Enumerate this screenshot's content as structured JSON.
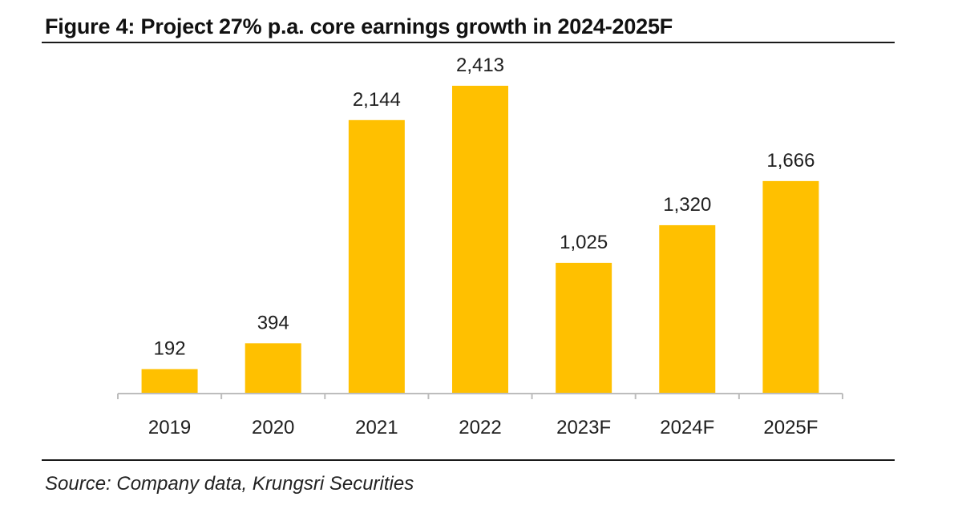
{
  "figure": {
    "title": "Figure 4: Project 27% p.a. core earnings growth in 2024-2025F",
    "source": "Source: Company data, Krungsri Securities"
  },
  "chart_data": {
    "type": "bar",
    "title": "Figure 4: Project 27% p.a. core earnings growth in 2024-2025F",
    "categories": [
      "2019",
      "2020",
      "2021",
      "2022",
      "2023F",
      "2024F",
      "2025F"
    ],
    "values": [
      192,
      394,
      2144,
      2413,
      1025,
      1320,
      1666
    ],
    "value_labels": [
      "192",
      "394",
      "2,144",
      "2,413",
      "1,025",
      "1,320",
      "1,666"
    ],
    "xlabel": "",
    "ylabel": "",
    "ylim": [
      0,
      2413
    ],
    "grid": false,
    "legend": "none",
    "bar_color": "#FFC000"
  }
}
